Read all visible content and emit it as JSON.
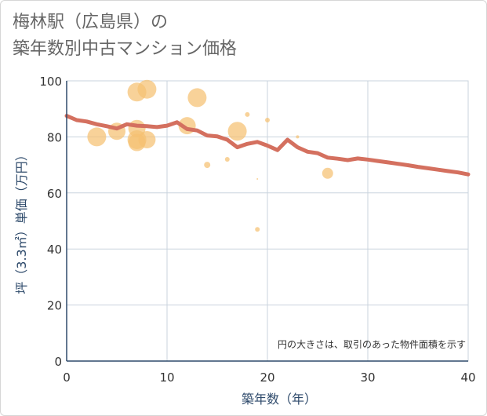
{
  "title_line1": "梅林駅（広島県）の",
  "title_line2": "築年数別中古マンション価格",
  "chart_data": {
    "type": "scatter+line",
    "xlabel": "築年数（年）",
    "ylabel": "坪（3.3㎡）単価（万円）",
    "xlim": [
      0,
      40
    ],
    "ylim": [
      0,
      100
    ],
    "xticks": [
      0,
      10,
      20,
      30,
      40
    ],
    "yticks": [
      0,
      20,
      40,
      60,
      80,
      100
    ],
    "grid": true,
    "note": "円の大きさは、取引のあった物件面積を示す",
    "colors": {
      "line": "#d4705f",
      "bubble": "#f5c071",
      "grid": "#c9d3dd",
      "axis": "#2e4a6b"
    },
    "trend_line": {
      "x": [
        0,
        1,
        2,
        3,
        4,
        5,
        6,
        7,
        8,
        9,
        10,
        11,
        12,
        13,
        14,
        15,
        16,
        17,
        18,
        19,
        20,
        21,
        22,
        23,
        24,
        25,
        26,
        27,
        28,
        29,
        30,
        31,
        32,
        33,
        34,
        35,
        36,
        37,
        38,
        39,
        40
      ],
      "y": [
        87.5,
        86,
        85.5,
        84.5,
        83.8,
        83,
        84.5,
        84,
        83.8,
        83.5,
        84,
        85.2,
        82.8,
        82.3,
        80.5,
        80.2,
        79,
        76.3,
        77.5,
        78.2,
        76.9,
        75.3,
        79,
        76.3,
        74.7,
        74.2,
        72.6,
        72.2,
        71.7,
        72.3,
        71.9,
        71.4,
        70.9,
        70.4,
        69.9,
        69.3,
        68.8,
        68.3,
        67.8,
        67.3,
        66.6
      ]
    },
    "bubbles": [
      {
        "x": 3,
        "y": 80,
        "size": 12
      },
      {
        "x": 5,
        "y": 82,
        "size": 11
      },
      {
        "x": 7,
        "y": 96,
        "size": 12
      },
      {
        "x": 7,
        "y": 83,
        "size": 11
      },
      {
        "x": 7,
        "y": 79,
        "size": 12
      },
      {
        "x": 7,
        "y": 78,
        "size": 11
      },
      {
        "x": 8,
        "y": 97,
        "size": 12
      },
      {
        "x": 8,
        "y": 79,
        "size": 11
      },
      {
        "x": 12,
        "y": 84,
        "size": 11
      },
      {
        "x": 13,
        "y": 94,
        "size": 12
      },
      {
        "x": 14,
        "y": 70,
        "size": 4
      },
      {
        "x": 16,
        "y": 72,
        "size": 3
      },
      {
        "x": 17,
        "y": 82,
        "size": 12
      },
      {
        "x": 18,
        "y": 88,
        "size": 3
      },
      {
        "x": 19,
        "y": 65,
        "size": 1
      },
      {
        "x": 19,
        "y": 47,
        "size": 3
      },
      {
        "x": 20,
        "y": 86,
        "size": 3
      },
      {
        "x": 23,
        "y": 80,
        "size": 2
      },
      {
        "x": 26,
        "y": 67,
        "size": 7
      }
    ]
  }
}
